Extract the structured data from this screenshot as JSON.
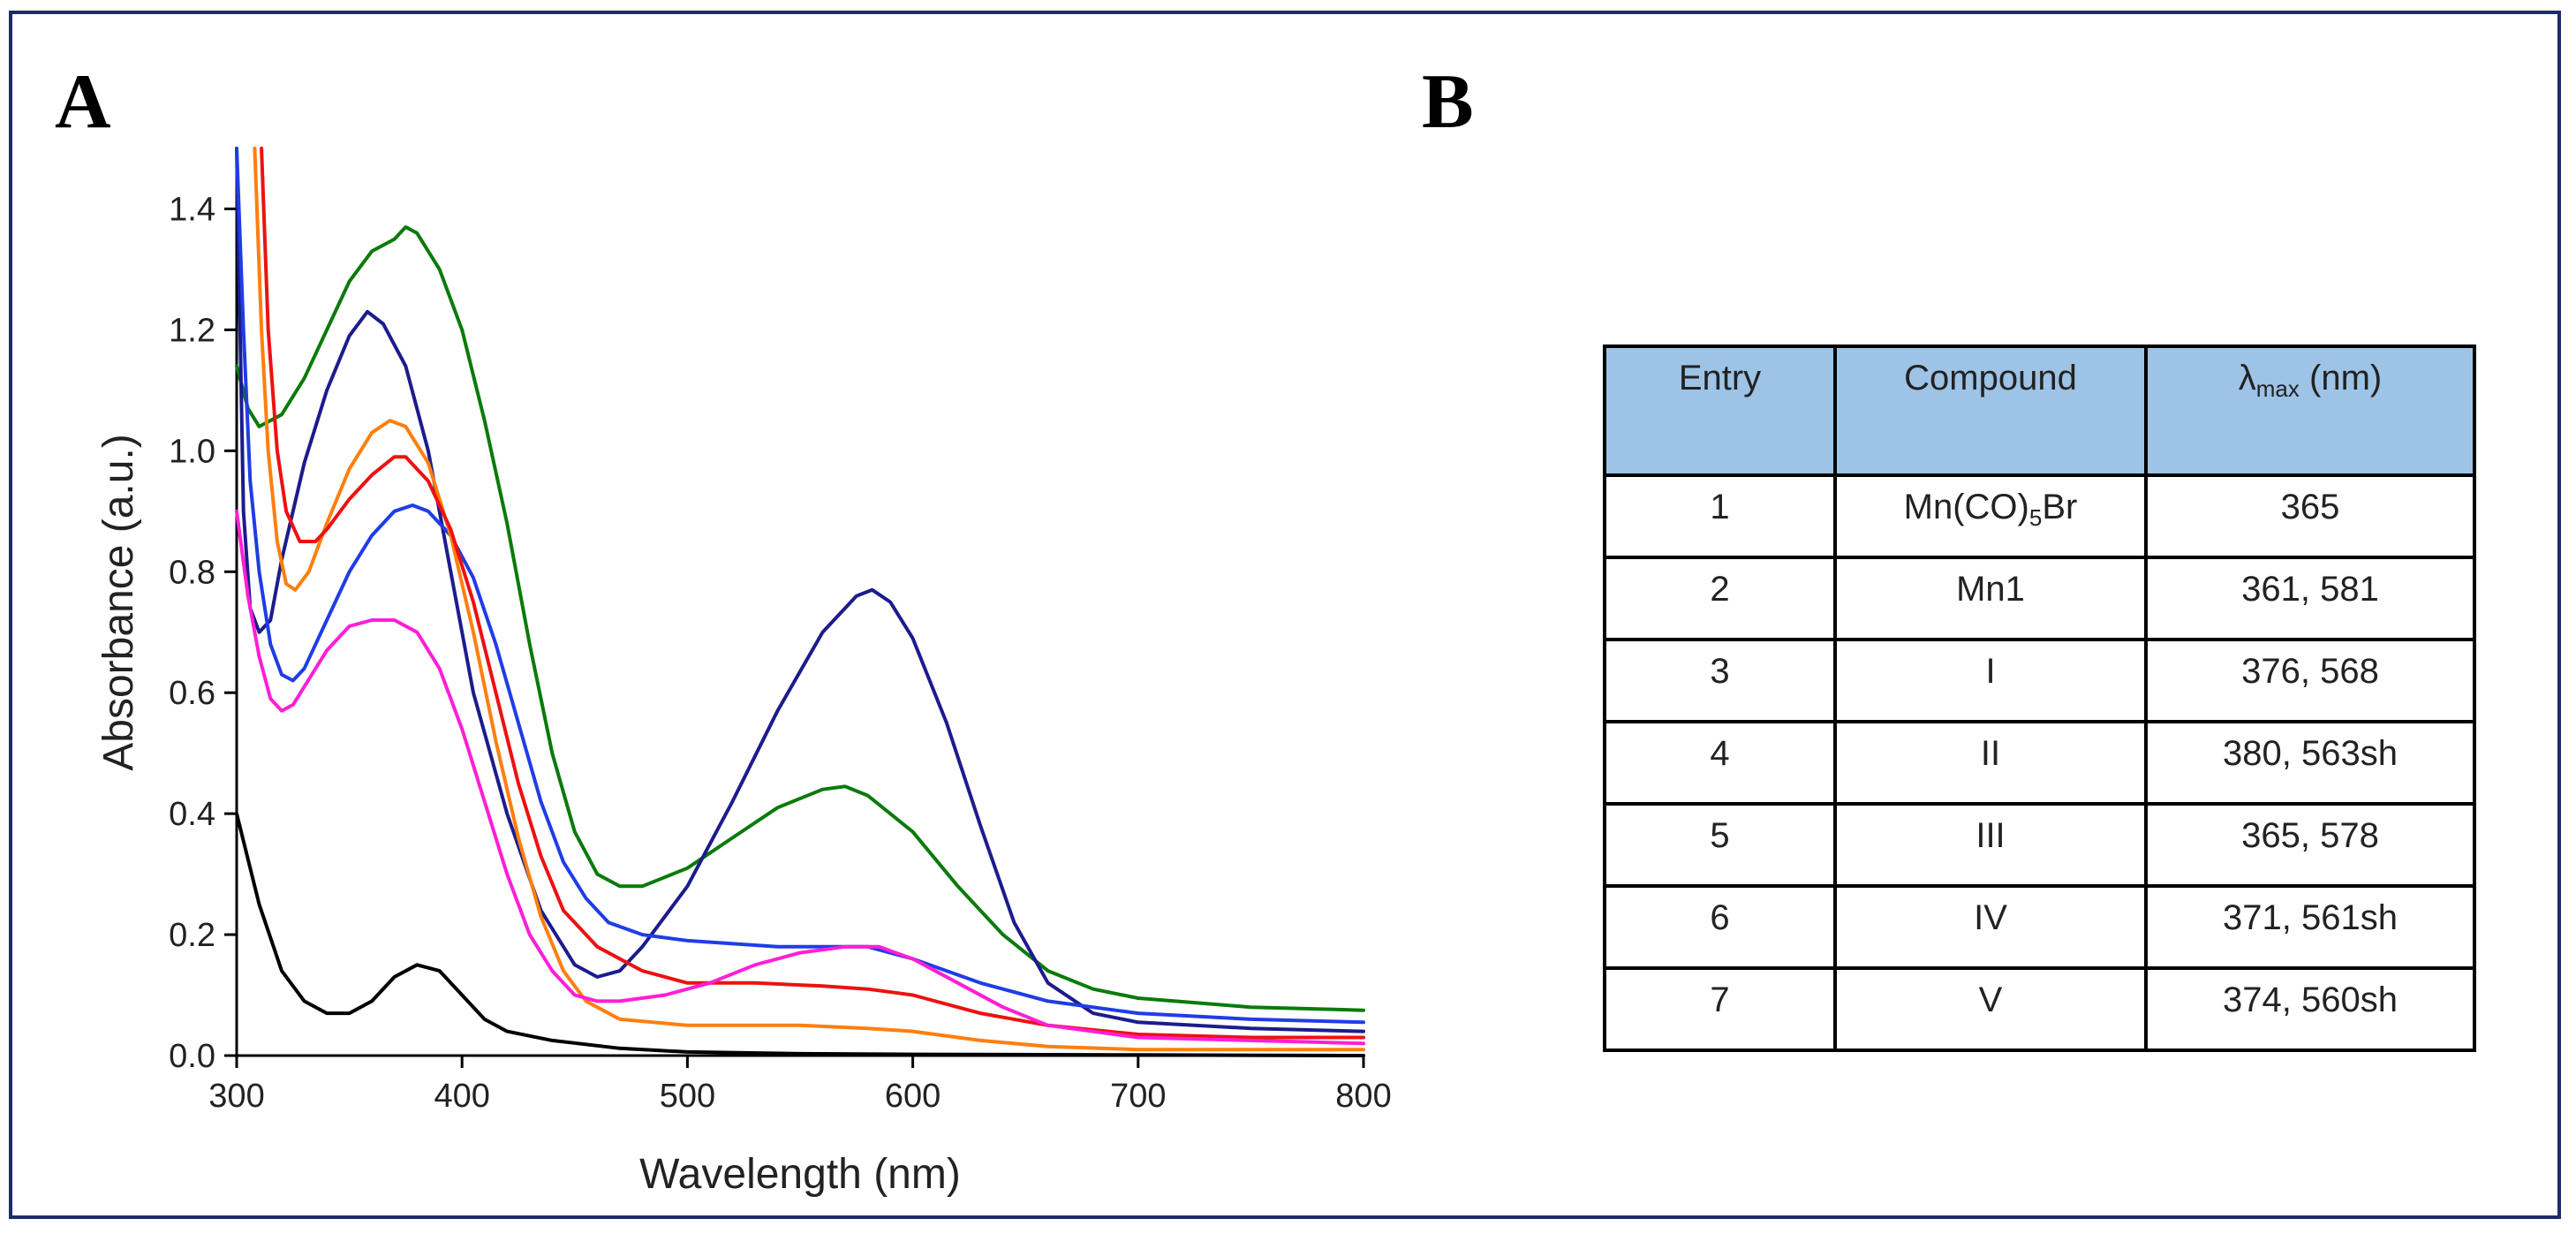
{
  "panel_labels": {
    "a": "A",
    "b": "B"
  },
  "chart_data": {
    "type": "line",
    "title": "",
    "xlabel": "Wavelength (nm)",
    "ylabel": "Absorbance (a.u.)",
    "xlim": [
      300,
      800
    ],
    "ylim": [
      0,
      1.5
    ],
    "xticks": [
      300,
      400,
      500,
      600,
      700,
      800
    ],
    "yticks": [
      0.0,
      0.2,
      0.4,
      0.6,
      0.8,
      1.0,
      1.2,
      1.4
    ],
    "xtick_labels": [
      "300",
      "400",
      "500",
      "600",
      "700",
      "800"
    ],
    "ytick_labels": [
      "0.0",
      "0.2",
      "0.4",
      "0.6",
      "0.8",
      "1.0",
      "1.2",
      "1.4"
    ],
    "grid": false,
    "legend": "none",
    "series": [
      {
        "name": "black",
        "color": "#000000",
        "points": [
          [
            300,
            0.4
          ],
          [
            310,
            0.25
          ],
          [
            320,
            0.14
          ],
          [
            330,
            0.09
          ],
          [
            340,
            0.07
          ],
          [
            350,
            0.07
          ],
          [
            360,
            0.09
          ],
          [
            370,
            0.13
          ],
          [
            380,
            0.15
          ],
          [
            390,
            0.14
          ],
          [
            400,
            0.1
          ],
          [
            410,
            0.06
          ],
          [
            420,
            0.04
          ],
          [
            440,
            0.025
          ],
          [
            470,
            0.012
          ],
          [
            500,
            0.006
          ],
          [
            550,
            0.003
          ],
          [
            600,
            0.002
          ],
          [
            700,
            0.001
          ],
          [
            800,
            0.0
          ]
        ]
      },
      {
        "name": "green",
        "color": "#0a7a0a",
        "points": [
          [
            300,
            1.14
          ],
          [
            305,
            1.07
          ],
          [
            310,
            1.04
          ],
          [
            320,
            1.06
          ],
          [
            330,
            1.12
          ],
          [
            340,
            1.2
          ],
          [
            350,
            1.28
          ],
          [
            360,
            1.33
          ],
          [
            370,
            1.35
          ],
          [
            375,
            1.37
          ],
          [
            380,
            1.36
          ],
          [
            390,
            1.3
          ],
          [
            400,
            1.2
          ],
          [
            410,
            1.05
          ],
          [
            420,
            0.88
          ],
          [
            430,
            0.68
          ],
          [
            440,
            0.5
          ],
          [
            450,
            0.37
          ],
          [
            460,
            0.3
          ],
          [
            470,
            0.28
          ],
          [
            480,
            0.28
          ],
          [
            500,
            0.31
          ],
          [
            520,
            0.36
          ],
          [
            540,
            0.41
          ],
          [
            560,
            0.44
          ],
          [
            570,
            0.445
          ],
          [
            580,
            0.43
          ],
          [
            600,
            0.37
          ],
          [
            620,
            0.28
          ],
          [
            640,
            0.2
          ],
          [
            660,
            0.14
          ],
          [
            680,
            0.11
          ],
          [
            700,
            0.095
          ],
          [
            750,
            0.08
          ],
          [
            800,
            0.075
          ]
        ]
      },
      {
        "name": "navy",
        "color": "#1c1c8c",
        "points": [
          [
            300,
            1.5
          ],
          [
            303,
            0.9
          ],
          [
            306,
            0.74
          ],
          [
            310,
            0.7
          ],
          [
            315,
            0.72
          ],
          [
            320,
            0.82
          ],
          [
            330,
            0.98
          ],
          [
            340,
            1.1
          ],
          [
            350,
            1.19
          ],
          [
            358,
            1.23
          ],
          [
            365,
            1.21
          ],
          [
            375,
            1.14
          ],
          [
            385,
            1.0
          ],
          [
            395,
            0.8
          ],
          [
            405,
            0.6
          ],
          [
            420,
            0.4
          ],
          [
            435,
            0.24
          ],
          [
            450,
            0.15
          ],
          [
            460,
            0.13
          ],
          [
            470,
            0.14
          ],
          [
            480,
            0.18
          ],
          [
            500,
            0.28
          ],
          [
            520,
            0.42
          ],
          [
            540,
            0.57
          ],
          [
            560,
            0.7
          ],
          [
            575,
            0.76
          ],
          [
            582,
            0.77
          ],
          [
            590,
            0.75
          ],
          [
            600,
            0.69
          ],
          [
            615,
            0.55
          ],
          [
            630,
            0.38
          ],
          [
            645,
            0.22
          ],
          [
            660,
            0.12
          ],
          [
            680,
            0.07
          ],
          [
            700,
            0.055
          ],
          [
            750,
            0.045
          ],
          [
            800,
            0.04
          ]
        ]
      },
      {
        "name": "blue",
        "color": "#1f3de6",
        "points": [
          [
            300,
            1.5
          ],
          [
            303,
            1.2
          ],
          [
            306,
            0.95
          ],
          [
            310,
            0.8
          ],
          [
            315,
            0.68
          ],
          [
            320,
            0.63
          ],
          [
            325,
            0.62
          ],
          [
            330,
            0.64
          ],
          [
            340,
            0.72
          ],
          [
            350,
            0.8
          ],
          [
            360,
            0.86
          ],
          [
            370,
            0.9
          ],
          [
            378,
            0.91
          ],
          [
            385,
            0.9
          ],
          [
            395,
            0.86
          ],
          [
            405,
            0.79
          ],
          [
            415,
            0.68
          ],
          [
            425,
            0.55
          ],
          [
            435,
            0.42
          ],
          [
            445,
            0.32
          ],
          [
            455,
            0.26
          ],
          [
            465,
            0.22
          ],
          [
            480,
            0.2
          ],
          [
            500,
            0.19
          ],
          [
            540,
            0.18
          ],
          [
            580,
            0.18
          ],
          [
            600,
            0.16
          ],
          [
            630,
            0.12
          ],
          [
            660,
            0.09
          ],
          [
            700,
            0.07
          ],
          [
            750,
            0.06
          ],
          [
            800,
            0.055
          ]
        ]
      },
      {
        "name": "orange",
        "color": "#ff7f0e",
        "points": [
          [
            308,
            1.5
          ],
          [
            311,
            1.2
          ],
          [
            314,
            1.0
          ],
          [
            318,
            0.85
          ],
          [
            322,
            0.78
          ],
          [
            326,
            0.77
          ],
          [
            332,
            0.8
          ],
          [
            340,
            0.88
          ],
          [
            350,
            0.97
          ],
          [
            360,
            1.03
          ],
          [
            368,
            1.05
          ],
          [
            375,
            1.04
          ],
          [
            385,
            0.98
          ],
          [
            395,
            0.86
          ],
          [
            405,
            0.7
          ],
          [
            415,
            0.52
          ],
          [
            425,
            0.36
          ],
          [
            435,
            0.23
          ],
          [
            445,
            0.14
          ],
          [
            455,
            0.09
          ],
          [
            470,
            0.06
          ],
          [
            500,
            0.05
          ],
          [
            550,
            0.05
          ],
          [
            580,
            0.045
          ],
          [
            600,
            0.04
          ],
          [
            630,
            0.025
          ],
          [
            660,
            0.015
          ],
          [
            700,
            0.01
          ],
          [
            800,
            0.01
          ]
        ]
      },
      {
        "name": "red",
        "color": "#ee1111",
        "points": [
          [
            311,
            1.5
          ],
          [
            314,
            1.2
          ],
          [
            318,
            1.0
          ],
          [
            322,
            0.9
          ],
          [
            328,
            0.85
          ],
          [
            335,
            0.85
          ],
          [
            340,
            0.87
          ],
          [
            350,
            0.92
          ],
          [
            360,
            0.96
          ],
          [
            370,
            0.99
          ],
          [
            375,
            0.99
          ],
          [
            385,
            0.95
          ],
          [
            395,
            0.87
          ],
          [
            405,
            0.75
          ],
          [
            415,
            0.6
          ],
          [
            425,
            0.45
          ],
          [
            435,
            0.33
          ],
          [
            445,
            0.24
          ],
          [
            460,
            0.18
          ],
          [
            480,
            0.14
          ],
          [
            500,
            0.12
          ],
          [
            530,
            0.12
          ],
          [
            560,
            0.115
          ],
          [
            580,
            0.11
          ],
          [
            600,
            0.1
          ],
          [
            630,
            0.07
          ],
          [
            660,
            0.05
          ],
          [
            700,
            0.035
          ],
          [
            750,
            0.03
          ],
          [
            800,
            0.03
          ]
        ]
      },
      {
        "name": "magenta",
        "color": "#ff1fd6",
        "points": [
          [
            300,
            0.9
          ],
          [
            305,
            0.76
          ],
          [
            310,
            0.66
          ],
          [
            315,
            0.59
          ],
          [
            320,
            0.57
          ],
          [
            325,
            0.58
          ],
          [
            330,
            0.61
          ],
          [
            340,
            0.67
          ],
          [
            350,
            0.71
          ],
          [
            360,
            0.72
          ],
          [
            370,
            0.72
          ],
          [
            380,
            0.7
          ],
          [
            390,
            0.64
          ],
          [
            400,
            0.54
          ],
          [
            410,
            0.42
          ],
          [
            420,
            0.3
          ],
          [
            430,
            0.2
          ],
          [
            440,
            0.14
          ],
          [
            450,
            0.1
          ],
          [
            460,
            0.09
          ],
          [
            470,
            0.09
          ],
          [
            490,
            0.1
          ],
          [
            510,
            0.12
          ],
          [
            530,
            0.15
          ],
          [
            550,
            0.17
          ],
          [
            570,
            0.18
          ],
          [
            585,
            0.18
          ],
          [
            600,
            0.16
          ],
          [
            620,
            0.12
          ],
          [
            640,
            0.08
          ],
          [
            660,
            0.05
          ],
          [
            700,
            0.03
          ],
          [
            750,
            0.025
          ],
          [
            800,
            0.02
          ]
        ]
      }
    ]
  },
  "table": {
    "headers": {
      "entry": "Entry",
      "compound": "Compound",
      "lambda_symbol": "λ",
      "lambda_sub": "max",
      "lambda_unit": " (nm)"
    },
    "rows": [
      {
        "entry": "1",
        "compound_pre": "Mn(CO)",
        "compound_sub": "5",
        "compound_post": "Br",
        "lambda": "365"
      },
      {
        "entry": "2",
        "compound": "Mn1",
        "lambda": "361, 581"
      },
      {
        "entry": "3",
        "compound": "I",
        "lambda": "376, 568"
      },
      {
        "entry": "4",
        "compound": "II",
        "lambda": "380, 563sh"
      },
      {
        "entry": "5",
        "compound": "III",
        "lambda": "365, 578"
      },
      {
        "entry": "6",
        "compound": "IV",
        "lambda": "371, 561sh"
      },
      {
        "entry": "7",
        "compound": "V",
        "lambda": "374, 560sh"
      }
    ]
  }
}
